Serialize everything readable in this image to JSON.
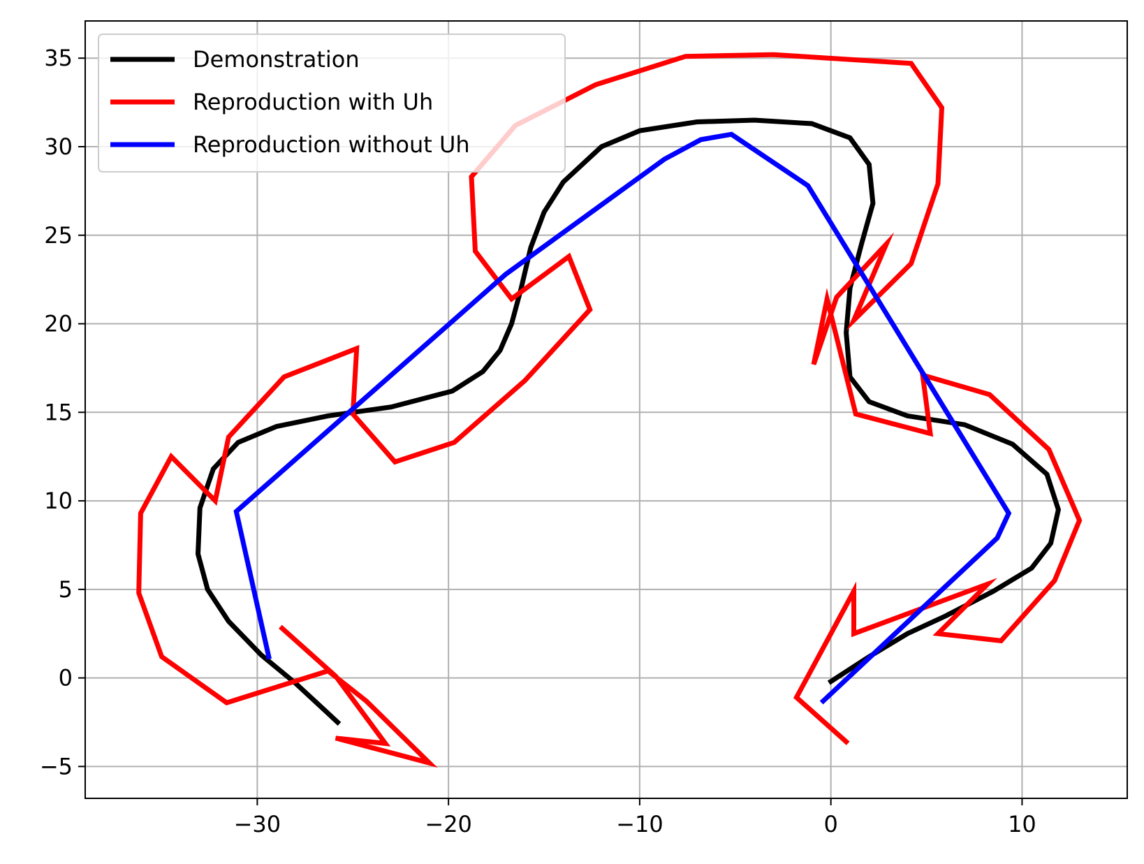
{
  "chart_data": {
    "type": "line",
    "title": "",
    "xlabel": "",
    "ylabel": "",
    "xlim": [
      -39,
      15.5
    ],
    "ylim": [
      -6.8,
      37.1
    ],
    "xticks": [
      -30,
      -20,
      -10,
      0,
      10
    ],
    "xtick_labels": [
      "−30",
      "−20",
      "−10",
      "0",
      "10"
    ],
    "yticks": [
      -5,
      0,
      5,
      10,
      15,
      20,
      25,
      30,
      35
    ],
    "ytick_labels": [
      "−5",
      "0",
      "5",
      "10",
      "15",
      "20",
      "25",
      "30",
      "35"
    ],
    "grid": true,
    "legend_position": "top-left",
    "series": [
      {
        "name": "Demonstration",
        "color": "#000000",
        "x": [
          -25.8,
          -26.5,
          -28.0,
          -29.8,
          -31.5,
          -32.6,
          -33.1,
          -33.0,
          -32.3,
          -31.0,
          -29.0,
          -26.3,
          -23.0,
          -19.8,
          -18.2,
          -17.3,
          -16.7,
          -16.2,
          -15.7,
          -15.0,
          -14.0,
          -12.0,
          -10.0,
          -7.0,
          -4.0,
          -1.0,
          1.0,
          2.0,
          2.2,
          1.6,
          1.0,
          0.8,
          1.0,
          2.0,
          4.0,
          7.0,
          9.5,
          11.3,
          11.9,
          11.5,
          10.5,
          8.5,
          6.0,
          4.0,
          2.0,
          0.0
        ],
        "y": [
          -2.5,
          -1.8,
          -0.3,
          1.3,
          3.2,
          5.0,
          7.0,
          9.6,
          11.8,
          13.3,
          14.2,
          14.8,
          15.3,
          16.2,
          17.3,
          18.5,
          20.0,
          22.0,
          24.3,
          26.3,
          28.0,
          30.0,
          30.9,
          31.4,
          31.5,
          31.3,
          30.5,
          29.0,
          26.8,
          24.5,
          22.0,
          19.5,
          17.0,
          15.6,
          14.8,
          14.3,
          13.2,
          11.5,
          9.5,
          7.6,
          6.2,
          4.9,
          3.5,
          2.5,
          1.2,
          -0.2
        ]
      },
      {
        "name": "Reproduction with Uh",
        "color": "#ff0000",
        "x": [
          -28.7,
          -25.9,
          -23.3,
          -25.9,
          -21.0,
          -24.3,
          -26.3,
          -31.6,
          -35.0,
          -36.2,
          -36.1,
          -34.5,
          -32.2,
          -31.5,
          -28.6,
          -24.8,
          -25.0,
          -22.8,
          -19.7,
          -16.0,
          -12.6,
          -13.7,
          -16.7,
          -18.6,
          -18.8,
          -16.5,
          -12.3,
          -7.6,
          -3.0,
          4.2,
          5.8,
          5.6,
          4.2,
          1.2,
          2.9,
          0.3,
          -0.9,
          -0.2,
          1.3,
          5.2,
          4.8,
          8.3,
          11.4,
          13.0,
          11.7,
          8.9,
          5.6,
          8.2,
          1.2,
          1.2,
          -1.8,
          0.8
        ],
        "y": [
          2.8,
          0.1,
          -3.7,
          -3.4,
          -4.8,
          -1.3,
          0.4,
          -1.4,
          1.2,
          4.8,
          9.3,
          12.5,
          10.0,
          13.6,
          17.0,
          18.6,
          14.9,
          12.2,
          13.3,
          16.8,
          20.8,
          23.8,
          21.4,
          24.1,
          28.3,
          31.2,
          33.5,
          35.1,
          35.2,
          34.7,
          32.2,
          27.9,
          23.4,
          20.2,
          24.5,
          21.5,
          17.7,
          21.4,
          14.9,
          13.8,
          17.1,
          16.0,
          12.9,
          8.9,
          5.5,
          2.1,
          2.5,
          5.3,
          2.5,
          4.9,
          -1.1,
          -3.6
        ]
      },
      {
        "name": "Reproduction without Uh",
        "color": "#0000ff",
        "x": [
          -29.4,
          -31.1,
          -17.0,
          -8.7,
          -6.8,
          -5.2,
          -1.2,
          9.3,
          8.7,
          -0.4
        ],
        "y": [
          1.2,
          9.4,
          22.8,
          29.3,
          30.4,
          30.7,
          27.8,
          9.3,
          7.9,
          -1.3
        ]
      }
    ]
  }
}
